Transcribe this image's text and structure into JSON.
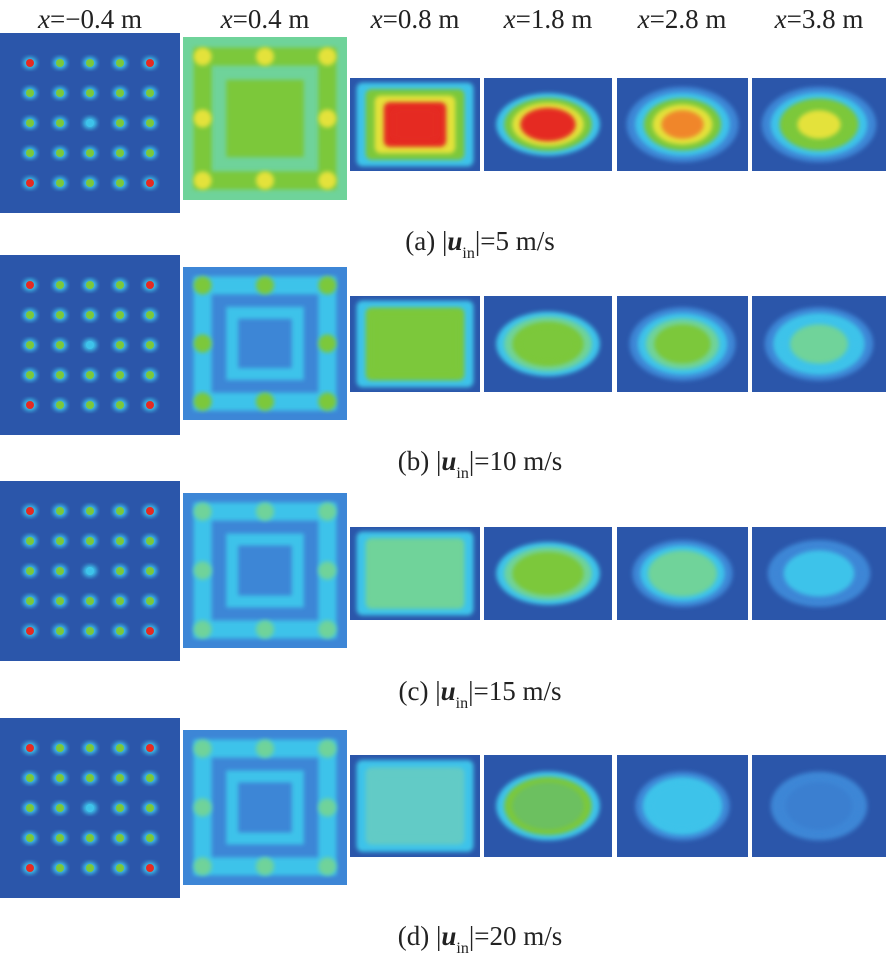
{
  "columns": [
    {
      "var": "x",
      "text": "=−0.4 m"
    },
    {
      "var": "x",
      "text": "=0.4 m"
    },
    {
      "var": "x",
      "text": "=0.8 m"
    },
    {
      "var": "x",
      "text": "=1.8 m"
    },
    {
      "var": "x",
      "text": "=2.8 m"
    },
    {
      "var": "x",
      "text": "=3.8 m"
    }
  ],
  "rows": [
    {
      "prefix": "(a) |",
      "var": "u",
      "sub": "in",
      "suffix": "|=5 m/s"
    },
    {
      "prefix": "(b) |",
      "var": "u",
      "sub": "in",
      "suffix": "|=10 m/s"
    },
    {
      "prefix": "(c) |",
      "var": "u",
      "sub": "in",
      "suffix": "|=15 m/s"
    },
    {
      "prefix": "(d) |",
      "var": "u",
      "sub": "in",
      "suffix": "|=20 m/s"
    }
  ]
}
